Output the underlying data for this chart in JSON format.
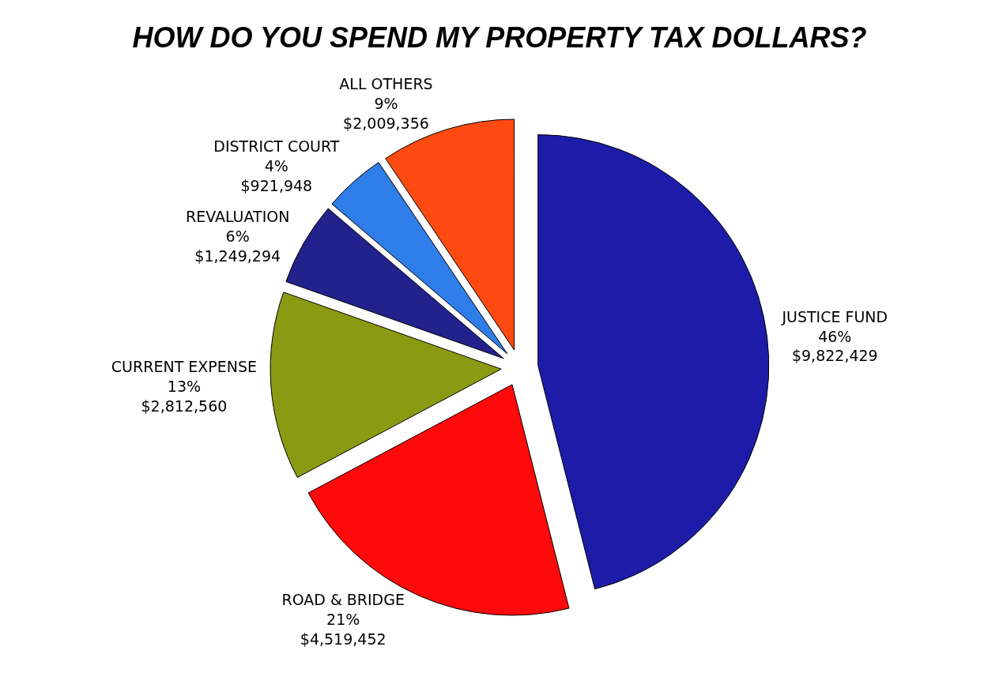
{
  "chart_data": {
    "type": "pie",
    "title": "HOW DO YOU SPEND MY PROPERTY TAX DOLLARS?",
    "categories": [
      "JUSTICE FUND",
      "ROAD & BRIDGE",
      "CURRENT EXPENSE",
      "REVALUATION",
      "DISTRICT COURT",
      "ALL OTHERS"
    ],
    "values": [
      9822429,
      4519452,
      2812560,
      1249294,
      921948,
      2009356
    ],
    "value_labels": [
      "46%\n$9,822,429",
      "21%\n$4,519,452",
      "13%\n$2,812,560",
      "6%\n$1,249,294",
      "4%\n$921,948",
      "9%\n$2,009,356"
    ],
    "colors": [
      "#1c1ca8",
      "#ff0a0a",
      "#8a9a12",
      "#22228c",
      "#2f7de8",
      "#ff4a12"
    ]
  }
}
